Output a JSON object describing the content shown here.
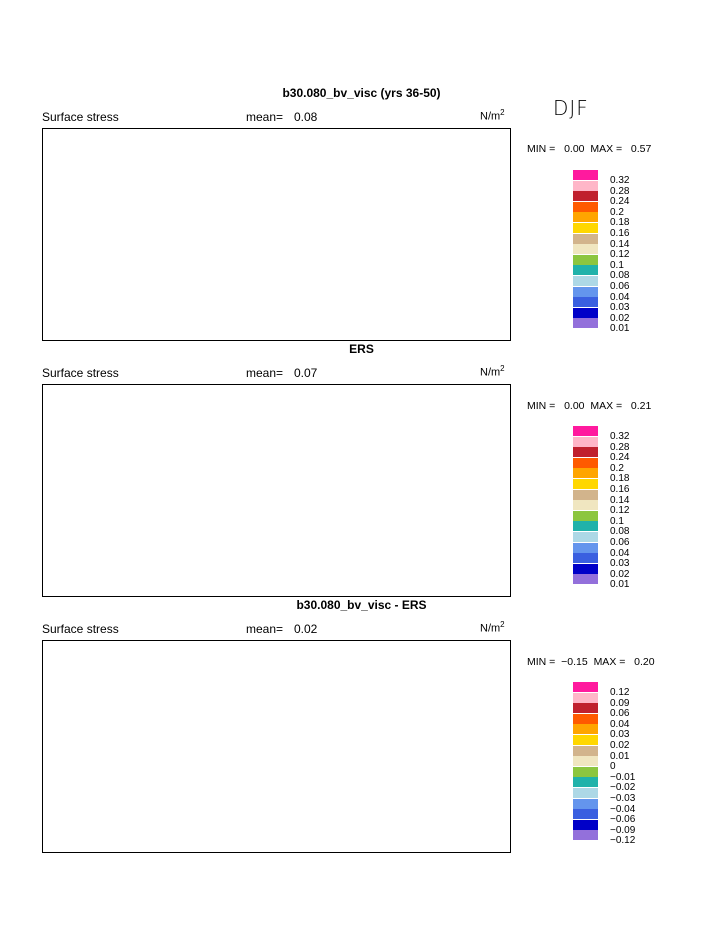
{
  "season": "DJF",
  "units_label": "N/m",
  "units_exp": "2",
  "panels": [
    {
      "title": "b30.080_bv_visc (yrs 36-50)",
      "field_label": "Surface stress",
      "mean_label": "mean=",
      "mean_value": "0.08",
      "min_label": "MIN =",
      "min_value": "0.00",
      "max_label": "MAX =",
      "max_value": "0.57"
    },
    {
      "title": "ERS",
      "field_label": "Surface stress",
      "mean_label": "mean=",
      "mean_value": "0.07",
      "min_label": "MIN =",
      "min_value": "0.00",
      "max_label": "MAX =",
      "max_value": "0.21"
    },
    {
      "title": "b30.080_bv_visc - ERS",
      "field_label": "Surface stress",
      "mean_label": "mean=",
      "mean_value": "0.02",
      "min_label": "MIN =",
      "min_value": "−0.15",
      "max_label": "MAX =",
      "max_value": "0.20"
    }
  ],
  "legend_colors": [
    "#ff1a9e",
    "#ffb6c8",
    "#c0202e",
    "#ff5a00",
    "#ffa500",
    "#ffd700",
    "#d2b48c",
    "#f0e6c0",
    "#8cc63f",
    "#20b2aa",
    "#add8e6",
    "#6495ed",
    "#3a5fe0",
    "#0000c8",
    "#9370db"
  ],
  "chart_data": [
    {
      "type": "heatmap",
      "title": "b30.080_bv_visc (yrs 36-50)",
      "subtitle": "Surface stress",
      "units": "N/m2",
      "mean": 0.08,
      "min": 0.0,
      "max": 0.57,
      "levels": [
        "0.32",
        "0.28",
        "0.24",
        "0.2",
        "0.18",
        "0.16",
        "0.14",
        "0.12",
        "0.1",
        "0.08",
        "0.06",
        "0.04",
        "0.03",
        "0.02",
        "0.01"
      ]
    },
    {
      "type": "heatmap",
      "title": "ERS",
      "subtitle": "Surface stress",
      "units": "N/m2",
      "mean": 0.07,
      "min": 0.0,
      "max": 0.21,
      "levels": [
        "0.32",
        "0.28",
        "0.24",
        "0.2",
        "0.18",
        "0.16",
        "0.14",
        "0.12",
        "0.1",
        "0.08",
        "0.06",
        "0.04",
        "0.03",
        "0.02",
        "0.01"
      ]
    },
    {
      "type": "heatmap",
      "title": "b30.080_bv_visc - ERS",
      "subtitle": "Surface stress",
      "units": "N/m2",
      "mean": 0.02,
      "min": -0.15,
      "max": 0.2,
      "levels": [
        "0.12",
        "0.09",
        "0.06",
        "0.04",
        "0.03",
        "0.02",
        "0.01",
        "0",
        "−0.01",
        "−0.02",
        "−0.03",
        "−0.04",
        "−0.06",
        "−0.09",
        "−0.12"
      ]
    }
  ]
}
